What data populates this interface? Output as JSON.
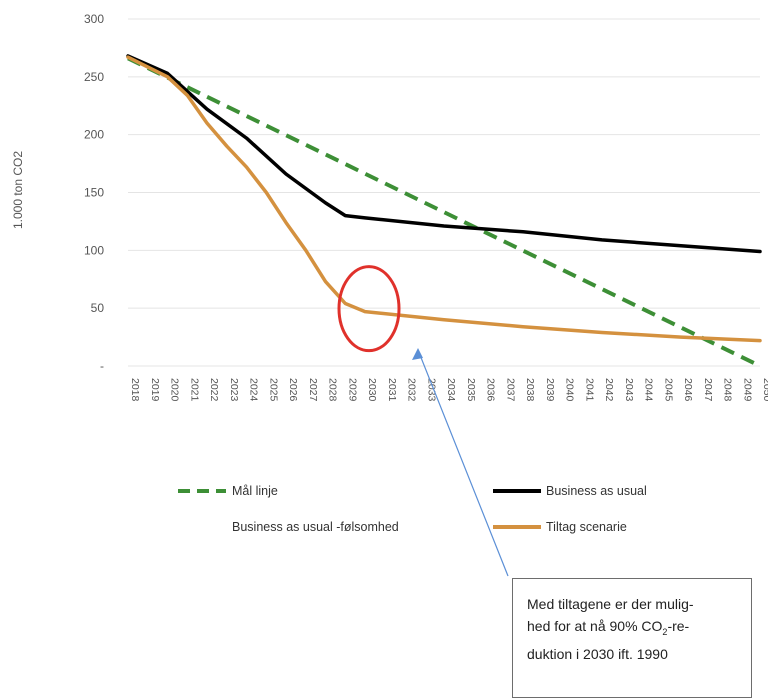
{
  "chart_data": {
    "type": "line",
    "title": "",
    "xlabel": "",
    "ylabel": "1.000 ton CO2",
    "ylim": [
      0,
      300
    ],
    "y_ticks": [
      {
        "value": 300,
        "label": "300"
      },
      {
        "value": 250,
        "label": "250"
      },
      {
        "value": 200,
        "label": "200"
      },
      {
        "value": 150,
        "label": "150"
      },
      {
        "value": 100,
        "label": "100"
      },
      {
        "value": 50,
        "label": "50"
      },
      {
        "value": 0,
        "label": "-"
      }
    ],
    "x_ticks": [
      "2018",
      "2019",
      "2020",
      "2021",
      "2022",
      "2023",
      "2024",
      "2025",
      "2026",
      "2027",
      "2028",
      "2029",
      "2030",
      "2031",
      "2032",
      "2033",
      "2034",
      "2035",
      "2036",
      "2037",
      "2038",
      "2039",
      "2040",
      "2041",
      "2042",
      "2043",
      "2044",
      "2045",
      "2046",
      "2047",
      "2048",
      "2049",
      "2050"
    ],
    "series": [
      {
        "name": "Mål linje",
        "color": "#3d8f36",
        "dash": true,
        "points": [
          [
            2018,
            266
          ],
          [
            2050,
            0
          ]
        ]
      },
      {
        "name": "Business as usual",
        "color": "#000000",
        "dash": false,
        "points": [
          [
            2018,
            268
          ],
          [
            2020,
            253
          ],
          [
            2022,
            222
          ],
          [
            2024,
            197
          ],
          [
            2026,
            166
          ],
          [
            2028,
            141
          ],
          [
            2029,
            130
          ],
          [
            2030,
            128
          ],
          [
            2034,
            121
          ],
          [
            2038,
            116
          ],
          [
            2042,
            109
          ],
          [
            2046,
            104
          ],
          [
            2050,
            99
          ]
        ]
      },
      {
        "name": "Business as usual -følsomhed",
        "color": "#cccccc",
        "dash": false,
        "points": []
      },
      {
        "name": "Tiltag scenarie",
        "color": "#d4913f",
        "dash": false,
        "points": [
          [
            2018,
            267
          ],
          [
            2020,
            250
          ],
          [
            2021,
            234
          ],
          [
            2022,
            210
          ],
          [
            2023,
            190
          ],
          [
            2024,
            172
          ],
          [
            2025,
            150
          ],
          [
            2026,
            124
          ],
          [
            2027,
            100
          ],
          [
            2028,
            73
          ],
          [
            2029,
            54
          ],
          [
            2030,
            47
          ],
          [
            2034,
            40
          ],
          [
            2038,
            34
          ],
          [
            2042,
            29
          ],
          [
            2046,
            25
          ],
          [
            2050,
            22
          ]
        ]
      }
    ],
    "legend": {
      "placement": "bottom",
      "entries": [
        {
          "label": "Mål linje",
          "color": "#3d8f36",
          "dash": true,
          "visible_swatch": true
        },
        {
          "label": "Business as usual",
          "color": "#000000",
          "dash": false,
          "visible_swatch": true
        },
        {
          "label": "Business as usual -følsomhed",
          "color": "#cccccc",
          "dash": false,
          "visible_swatch": false
        },
        {
          "label": "Tiltag scenarie",
          "color": "#d4913f",
          "dash": false,
          "visible_swatch": true
        }
      ]
    },
    "highlight": {
      "x": 2030,
      "y": 47,
      "color": "#e0312b"
    },
    "callout": {
      "line1": "Med tiltagene er der mulig-",
      "line2": "hed for at nå 90% CO",
      "line2_sub": "2",
      "line2_tail": "-re-",
      "line3": "duktion i 2030 ift. 1990",
      "arrow_color": "#5b8fd6"
    },
    "grid": true
  }
}
